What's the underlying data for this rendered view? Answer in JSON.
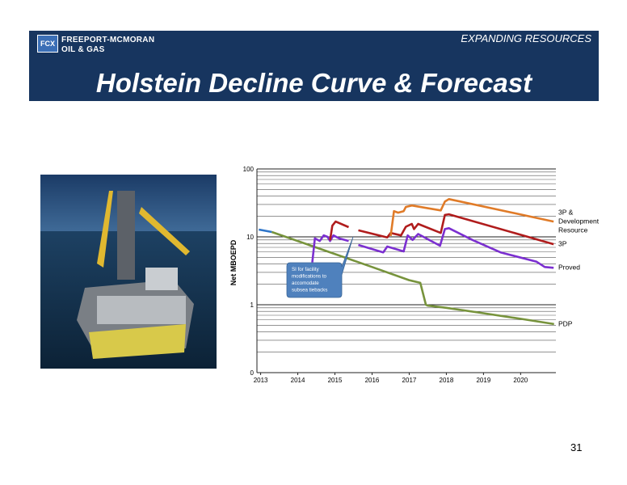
{
  "header": {
    "logo_line1": "FREEPORT-MCMORAN",
    "logo_line2": "OIL & GAS",
    "tagline": "EXPANDING RESOURCES",
    "title": "Holstein Decline Curve & Forecast"
  },
  "page_number": "31",
  "chart_data": {
    "type": "line",
    "y_label": "Net MBOEPD",
    "log_y": true,
    "grid": true,
    "ylim": [
      0.1,
      100
    ],
    "yticks": [
      {
        "value": 0.1,
        "label": "0"
      },
      1,
      10,
      100
    ],
    "yminor": [
      0.2,
      0.3,
      0.4,
      0.5,
      0.6,
      0.7,
      0.8,
      0.9,
      2,
      3,
      4,
      5,
      6,
      7,
      8,
      9,
      20,
      30,
      40,
      50,
      60,
      70,
      80,
      90
    ],
    "xlim": [
      2012.9,
      2020.95
    ],
    "xticks": [
      2013,
      2014,
      2015,
      2016,
      2017,
      2018,
      2019,
      2020
    ],
    "annotation": {
      "lines": [
        "SI for facility",
        "modifications to",
        "accomodate",
        "subsea tiebacks"
      ],
      "color": "#4f81bd"
    },
    "series": [
      {
        "color": "#2e75c9",
        "x": [
          2012.95,
          2013.3
        ],
        "values": [
          12.8,
          11.8
        ]
      },
      {
        "name": "PDP",
        "color": "#77933c",
        "x": [
          2013.3,
          2016.0,
          2017.0,
          2017.3,
          2017.45,
          2017.5,
          2018.0,
          2019.0,
          2020.0,
          2020.9
        ],
        "values": [
          11.8,
          3.6,
          2.3,
          2.1,
          1.0,
          0.97,
          0.9,
          0.75,
          0.62,
          0.52
        ]
      },
      {
        "name": "Proved",
        "color": "#7b2fd0",
        "x": [
          2014.39,
          2014.46,
          2014.59,
          2014.7,
          2014.8,
          2014.87,
          2014.96,
          2015.11,
          2015.37,
          2015.5,
          2015.63,
          2016.3,
          2016.41,
          2016.85,
          2016.96,
          2017.09,
          2017.24,
          2017.83,
          2017.96,
          2018.07,
          2018.7,
          2019.46,
          2020.43,
          2020.65,
          2020.89
        ],
        "values": [
          4.2,
          9.5,
          8.7,
          10.5,
          10,
          8.7,
          10.5,
          9.5,
          8.7,
          null,
          7.6,
          5.9,
          7.2,
          6.1,
          10.5,
          9,
          11,
          7.4,
          13,
          13.4,
          9,
          5.9,
          4.3,
          3.6,
          3.5
        ]
      },
      {
        "name": "3P",
        "color": "#b01c1c",
        "x": [
          2014.87,
          2014.93,
          2015.02,
          2015.37,
          2015.5,
          2015.63,
          2016.41,
          2016.5,
          2016.78,
          2016.91,
          2017.07,
          2017.13,
          2017.24,
          2017.85,
          2017.96,
          2018.07,
          2020.89
        ],
        "values": [
          8.9,
          14.6,
          16.8,
          13.9,
          null,
          12.5,
          9.8,
          11.4,
          10.5,
          14.1,
          15.5,
          13,
          15.5,
          11.4,
          21,
          21.5,
          7.8
        ]
      },
      {
        "name": "3P & Development Resource",
        "color": "#e07b28",
        "x": [
          2016.5,
          2016.59,
          2016.7,
          2016.85,
          2016.91,
          2017.07,
          2017.85,
          2017.96,
          2018.07,
          2020.89
        ],
        "values": [
          10.3,
          23.9,
          22.7,
          23.9,
          27.6,
          29,
          24.5,
          33,
          36,
          16.8
        ]
      }
    ]
  }
}
